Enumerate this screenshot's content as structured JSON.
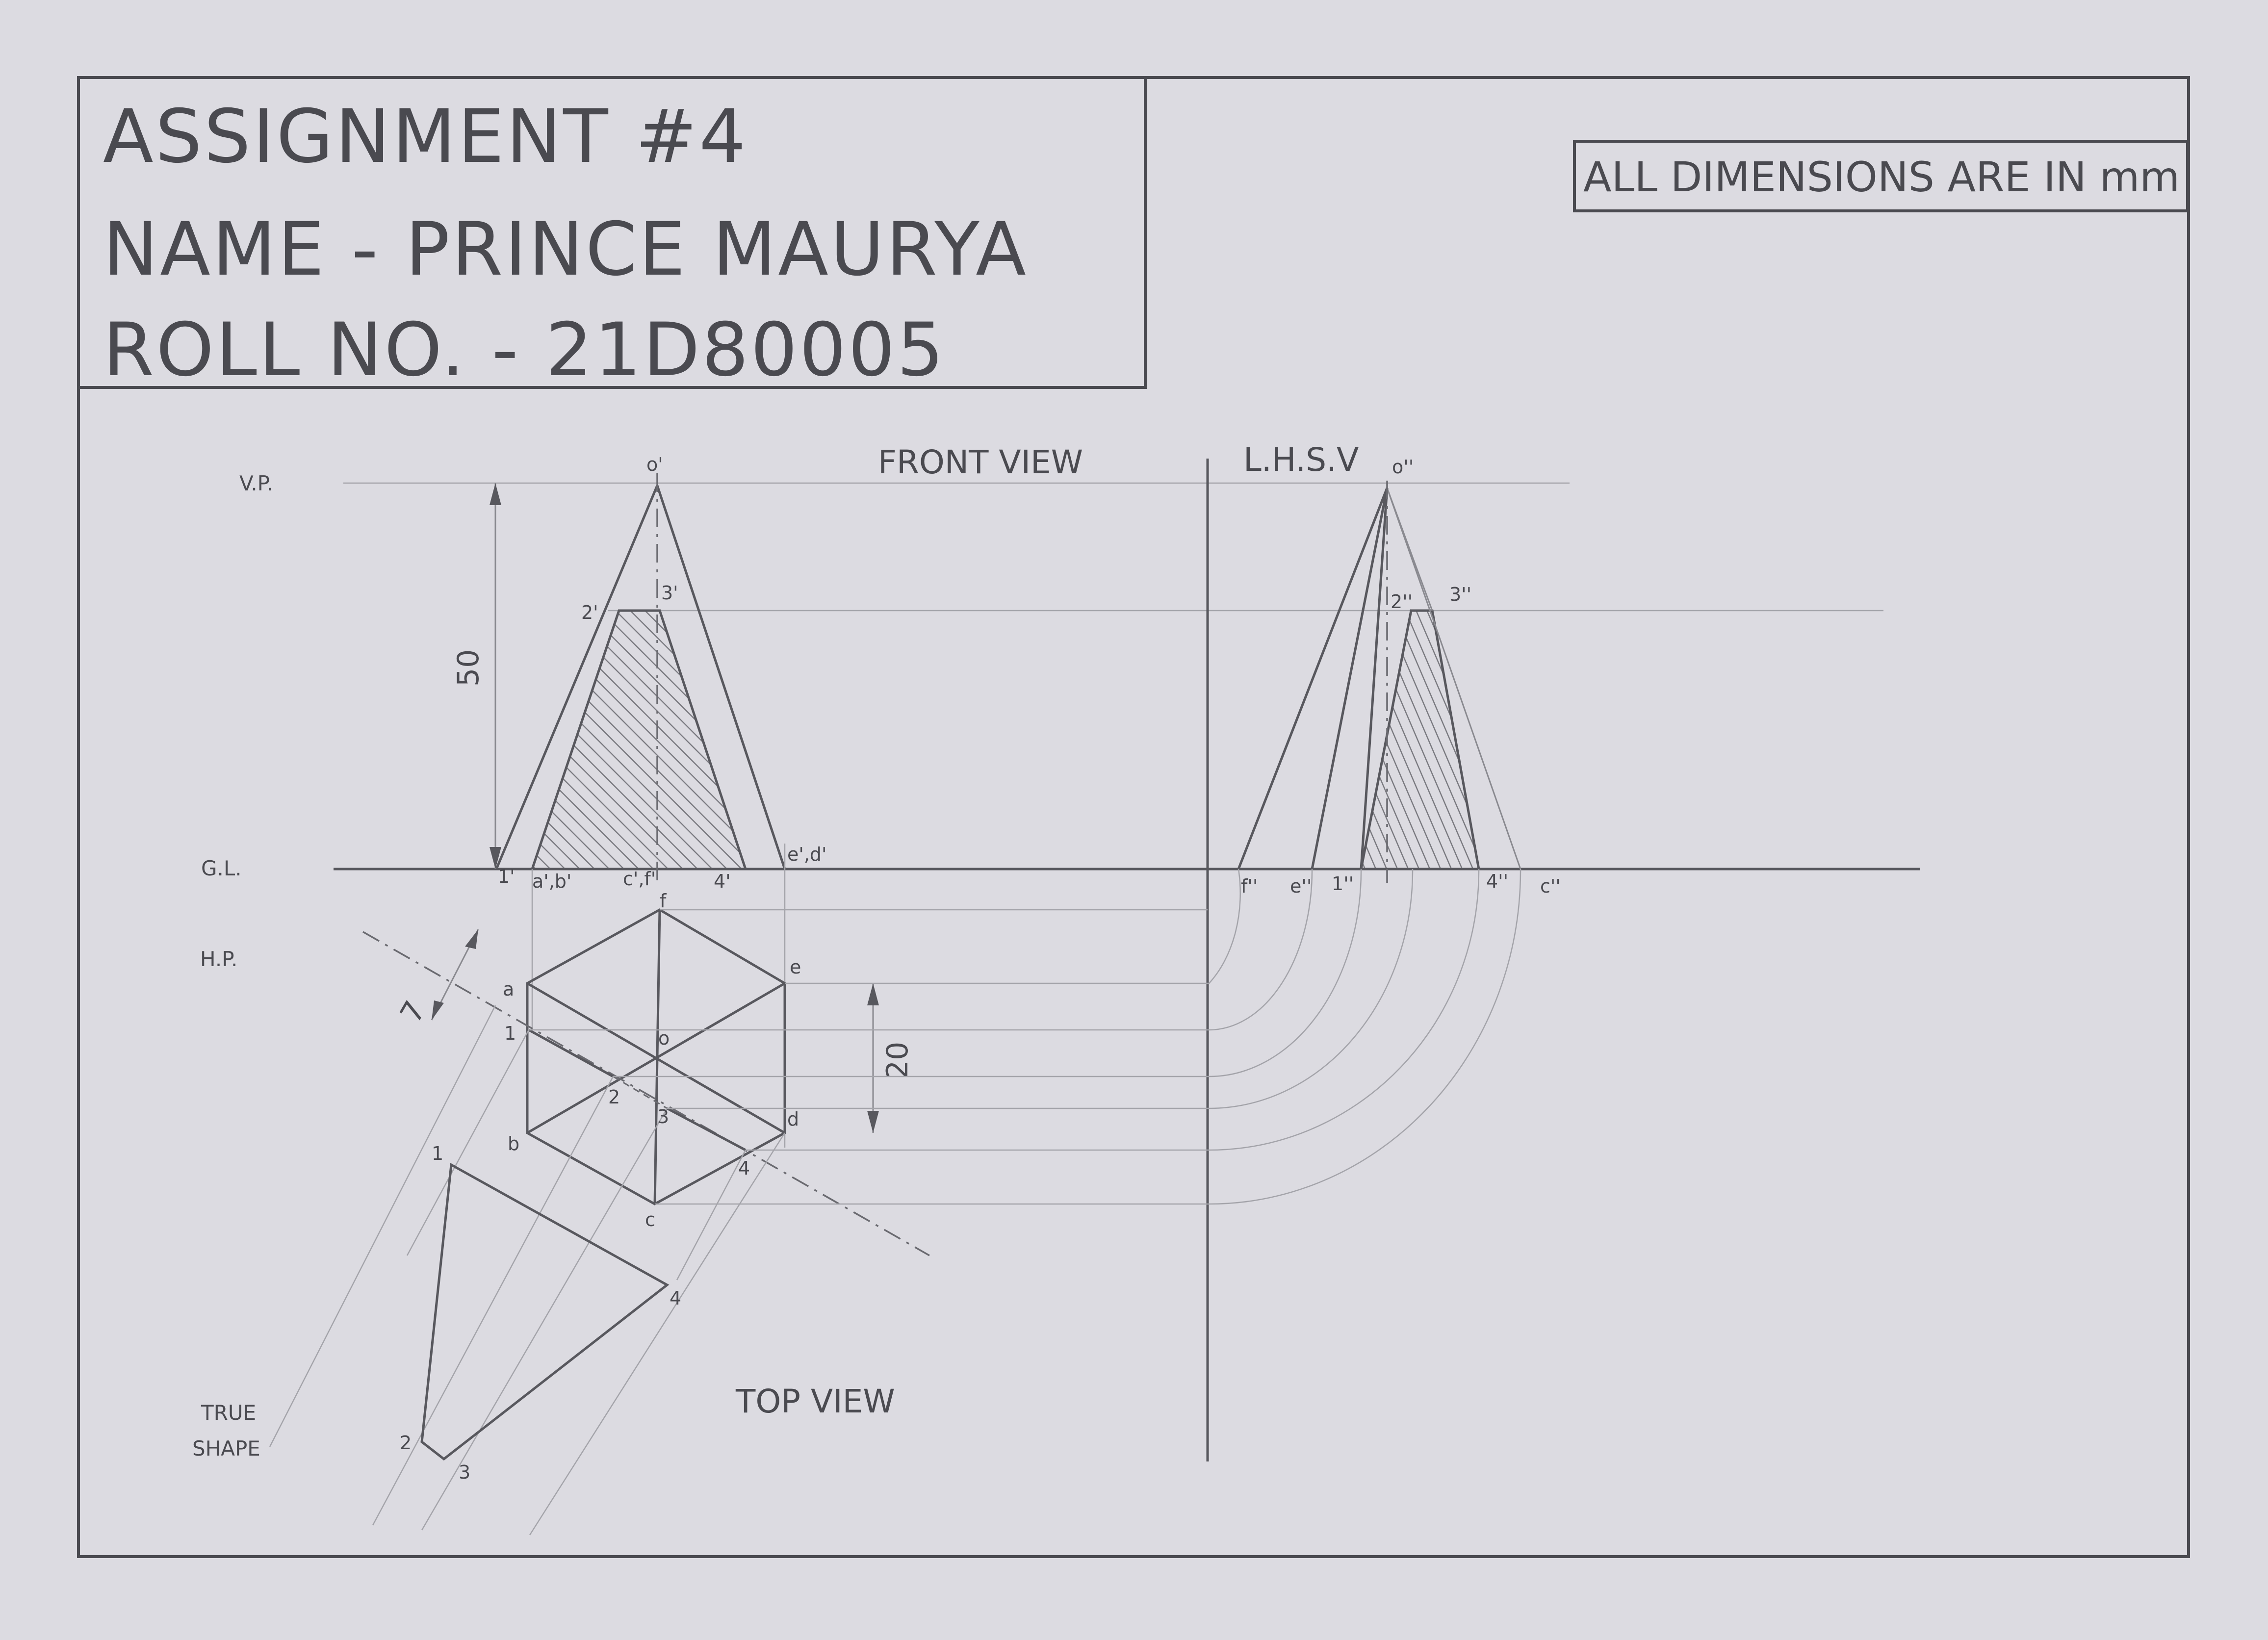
{
  "title_block": {
    "line1": "ASSIGNMENT #4",
    "line2": "NAME - PRINCE MAURYA",
    "line3": "ROLL NO. - 21D80005"
  },
  "note": "ALL DIMENSIONS ARE IN mm",
  "labels": {
    "vp": "V.P.",
    "gl": "G.L.",
    "hp": "H.P.",
    "front_view": "FRONT VIEW",
    "lhsv": "L.H.S.V",
    "top_view": "TOP VIEW",
    "true_shape_1": "TRUE",
    "true_shape_2": "SHAPE"
  },
  "dimensions": {
    "height": "50",
    "offset": "20",
    "cut": "7"
  },
  "points": {
    "front": {
      "apex": "o'",
      "p2": "2'",
      "p3": "3'",
      "p1": "1'",
      "ab": "a',b'",
      "cf": "c',f'",
      "p4": "4'",
      "ed": "e',d'"
    },
    "top": {
      "a": "a",
      "b": "b",
      "c": "c",
      "d": "d",
      "e": "e",
      "f": "f",
      "o": "o",
      "p1": "1",
      "p2": "2",
      "p3": "3",
      "p4": "4"
    },
    "side": {
      "apex": "o''",
      "p2": "2''",
      "p3": "3''",
      "f": "f''",
      "e": "e''",
      "p1": "1''",
      "p4": "4''",
      "c": "c''"
    },
    "true_shape": {
      "p1": "1",
      "p2": "2",
      "p3": "3",
      "p4": "4"
    }
  }
}
